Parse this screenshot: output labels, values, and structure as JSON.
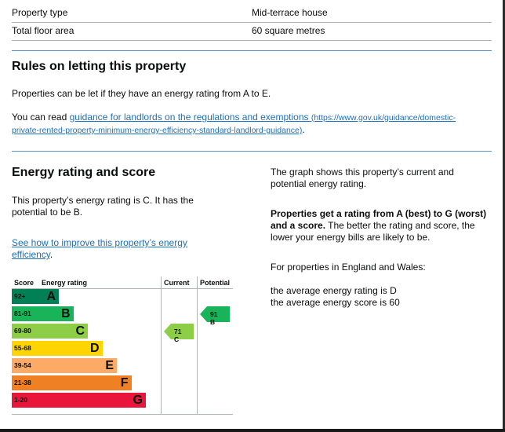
{
  "summary": [
    {
      "label": "Property type",
      "value": "Mid-terrace house"
    },
    {
      "label": "Total floor area",
      "value": "60 square metres"
    }
  ],
  "rules": {
    "heading": "Rules on letting this property",
    "p1": "Properties can be let if they have an energy rating from A to E.",
    "p2_prefix": "You can read ",
    "p2_link": "guidance for landlords on the regulations and exemptions",
    "p2_url_line1": "(https://www.gov.uk/guidance/domestic-",
    "p2_url_line2": "private-rented-property-minimum-energy-efficiency-standard-landlord-guidance)",
    "p2_suffix": "."
  },
  "rating": {
    "heading": "Energy rating and score",
    "intro_line1": "This property’s energy rating is C. It has the",
    "intro_line2": "potential to be B.",
    "improve_link_line1": "See how to improve this property’s energy",
    "improve_link_line2": "efficiency",
    "improve_suffix": ".",
    "right_p1_line1": "The graph shows this property’s current and",
    "right_p1_line2": "potential energy rating.",
    "right_p2_bold_line1": "Properties get a rating from A (best) to G (worst)",
    "right_p2_bold_line2": "and a score.",
    "right_p2_rest_line2": " The better the rating and score, the",
    "right_p2_rest_line3": "lower your energy bills are likely to be.",
    "right_p3": "For properties in England and Wales:",
    "right_p4_line1": "the average energy rating is D",
    "right_p4_line2": "the average energy score is 60"
  },
  "chart_data": {
    "type": "table",
    "headers": {
      "score": "Score",
      "rating": "Energy rating",
      "current": "Current",
      "potential": "Potential"
    },
    "bands": [
      {
        "score": "92+",
        "letter": "A",
        "color": "#008054"
      },
      {
        "score": "81-91",
        "letter": "B",
        "color": "#19b459"
      },
      {
        "score": "69-80",
        "letter": "C",
        "color": "#8dce46"
      },
      {
        "score": "55-68",
        "letter": "D",
        "color": "#ffd500"
      },
      {
        "score": "39-54",
        "letter": "E",
        "color": "#fcaa65"
      },
      {
        "score": "21-38",
        "letter": "F",
        "color": "#ef8023"
      },
      {
        "score": "1-20",
        "letter": "G",
        "color": "#e9153b"
      }
    ],
    "current": {
      "label": "71 C",
      "score": 71,
      "band": "C",
      "color": "#8dce46"
    },
    "potential": {
      "label": "91 B",
      "score": 91,
      "band": "B",
      "color": "#19b459"
    }
  }
}
